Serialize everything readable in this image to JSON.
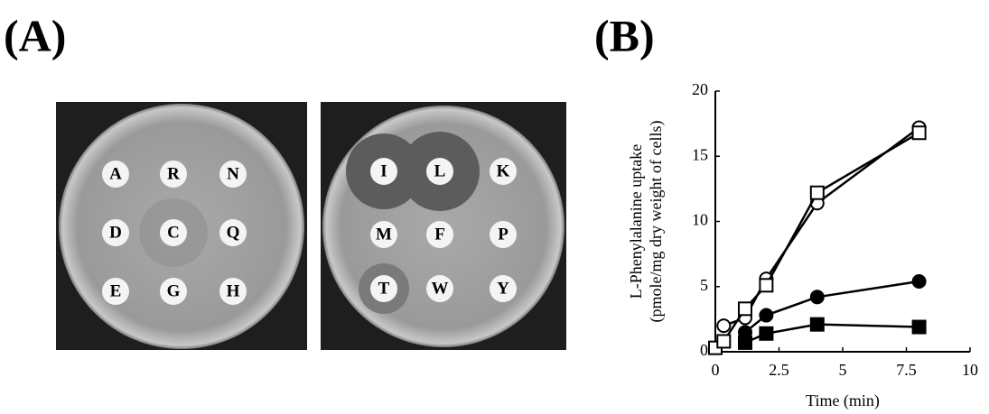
{
  "panels": {
    "a": "(A)",
    "b": "(B)"
  },
  "plates": [
    {
      "letters": [
        "A",
        "R",
        "N",
        "D",
        "C",
        "Q",
        "E",
        "G",
        "H"
      ]
    },
    {
      "letters": [
        "I",
        "L",
        "K",
        "M",
        "F",
        "P",
        "T",
        "W",
        "Y"
      ]
    }
  ],
  "chart_data": {
    "type": "line",
    "y_label": [
      "L-Phenylalanine uptake",
      "(pmole/mg dry weight of cells)"
    ],
    "x_label": "Time (min)",
    "xlim": [
      0,
      10
    ],
    "xticks": [
      0,
      2.5,
      5,
      7.5,
      10
    ],
    "ylim": [
      0,
      20
    ],
    "yticks": [
      0,
      5,
      10,
      15,
      20
    ],
    "series": [
      {
        "color": "#000000",
        "marker": "circle",
        "filled": false,
        "x": [
          0.33,
          1.17,
          2,
          4,
          8
        ],
        "values": [
          2.0,
          2.6,
          5.6,
          11.4,
          17.2
        ]
      },
      {
        "color": "#000000",
        "marker": "square",
        "filled": false,
        "x": [
          0,
          0.33,
          1.17,
          2,
          4,
          8
        ],
        "values": [
          0.3,
          0.8,
          3.3,
          5.1,
          12.2,
          16.8
        ]
      },
      {
        "color": "#000000",
        "marker": "circle",
        "filled": true,
        "x": [
          1.17,
          2,
          4,
          8
        ],
        "values": [
          1.5,
          2.8,
          4.2,
          5.4
        ]
      },
      {
        "color": "#000000",
        "marker": "square",
        "filled": true,
        "x": [
          1.17,
          2,
          4,
          8
        ],
        "values": [
          0.7,
          1.4,
          2.1,
          1.9
        ]
      }
    ]
  }
}
